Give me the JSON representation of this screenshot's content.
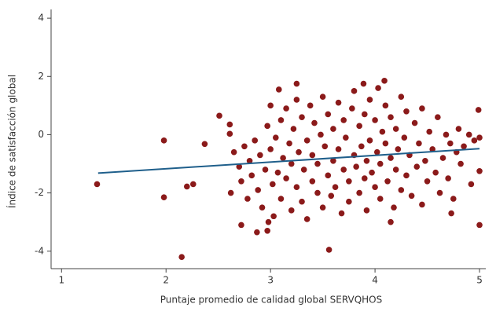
{
  "chart_data": {
    "type": "scatter",
    "x_label": "Puntaje promedio de calidad global SERVQHOS",
    "y_label": "Índice de satisfacción global",
    "xlim": [
      0.9,
      5.06
    ],
    "ylim": [
      -4.6,
      4.3
    ],
    "xticks": [
      1,
      2,
      3,
      4,
      5
    ],
    "yticks": [
      -4,
      -2,
      0,
      2,
      4
    ],
    "points": {
      "color": "#8b1a1a",
      "x": [
        1.34,
        1.98,
        1.98,
        2.15,
        2.2,
        2.26,
        2.37,
        2.51,
        2.61,
        2.61,
        2.62,
        2.72,
        2.87,
        2.97,
        2.98,
        3.08,
        3.25,
        3.56,
        3.89,
        4.09,
        4.15,
        4.99,
        5.0,
        4.73,
        5.0,
        5.0,
        2.65,
        2.7,
        2.72,
        2.75,
        2.78,
        2.8,
        2.82,
        2.85,
        2.88,
        2.9,
        2.92,
        2.95,
        2.97,
        3.0,
        3.0,
        3.02,
        3.03,
        3.05,
        3.07,
        3.1,
        3.1,
        3.12,
        3.15,
        3.15,
        3.18,
        3.2,
        3.2,
        3.22,
        3.25,
        3.25,
        3.27,
        3.3,
        3.3,
        3.32,
        3.35,
        3.35,
        3.38,
        3.4,
        3.4,
        3.42,
        3.45,
        3.45,
        3.48,
        3.5,
        3.5,
        3.52,
        3.55,
        3.55,
        3.58,
        3.6,
        3.6,
        3.62,
        3.65,
        3.65,
        3.68,
        3.7,
        3.7,
        3.72,
        3.75,
        3.75,
        3.78,
        3.8,
        3.8,
        3.82,
        3.85,
        3.85,
        3.87,
        3.9,
        3.9,
        3.92,
        3.92,
        3.95,
        3.95,
        3.97,
        4.0,
        4.0,
        4.02,
        4.03,
        4.05,
        4.05,
        4.07,
        4.1,
        4.1,
        4.12,
        4.15,
        4.15,
        4.18,
        4.2,
        4.2,
        4.22,
        4.25,
        4.25,
        4.28,
        4.3,
        4.3,
        4.33,
        4.35,
        4.38,
        4.4,
        4.42,
        4.45,
        4.45,
        4.48,
        4.5,
        4.52,
        4.55,
        4.58,
        4.6,
        4.62,
        4.65,
        4.68,
        4.7,
        4.72,
        4.75,
        4.78,
        4.8,
        4.82,
        4.85,
        4.9,
        4.92,
        4.95
      ],
      "y": [
        -1.7,
        -0.2,
        -2.15,
        -4.2,
        -1.78,
        -1.7,
        -0.32,
        0.65,
        0.35,
        0.03,
        -2.0,
        -3.1,
        -3.35,
        -3.3,
        -3.0,
        1.55,
        1.75,
        -3.95,
        1.75,
        1.85,
        -3.0,
        0.85,
        -3.1,
        -2.7,
        -1.25,
        -0.1,
        -0.6,
        -1.1,
        -1.6,
        -0.4,
        -2.2,
        -0.9,
        -1.4,
        -0.2,
        -1.9,
        -0.7,
        -2.5,
        -1.2,
        0.3,
        1.0,
        -0.5,
        -1.7,
        -2.8,
        -0.1,
        -1.3,
        0.5,
        -2.2,
        -0.8,
        -1.5,
        0.9,
        -0.3,
        -2.6,
        -1.0,
        0.2,
        -1.8,
        1.2,
        -0.6,
        -2.3,
        0.6,
        -1.2,
        -0.2,
        -2.9,
        1.0,
        -1.6,
        -0.7,
        0.4,
        -2.0,
        -1.0,
        0.0,
        1.3,
        -2.5,
        -0.4,
        -1.4,
        0.7,
        -2.1,
        -0.9,
        0.2,
        -1.8,
        -0.5,
        1.1,
        -2.7,
        -1.2,
        0.5,
        -0.1,
        -1.6,
        -2.3,
        0.9,
        -0.7,
        1.5,
        -1.1,
        -2.0,
        0.3,
        -0.4,
        -1.5,
        0.7,
        -2.6,
        -0.9,
        1.2,
        -0.2,
        -1.3,
        0.5,
        -1.8,
        -0.6,
        1.6,
        -2.2,
        -1.0,
        0.1,
        -0.3,
        1.0,
        -1.6,
        -0.8,
        0.6,
        -2.5,
        -1.2,
        0.2,
        -0.5,
        1.3,
        -1.9,
        -0.1,
        -1.4,
        0.8,
        -0.7,
        -2.1,
        0.4,
        -1.1,
        -0.3,
        -2.4,
        0.9,
        -0.9,
        -1.6,
        0.1,
        -0.5,
        -1.3,
        0.6,
        -2.0,
        -0.8,
        0.0,
        -1.5,
        -0.3,
        -2.2,
        -0.6,
        0.2,
        -1.0,
        -0.4,
        0.0,
        -1.7,
        -0.2
      ]
    },
    "fit_line": {
      "color": "#1f5f8b",
      "x": [
        1.35,
        5.0
      ],
      "y": [
        -1.32,
        -0.48
      ]
    }
  }
}
